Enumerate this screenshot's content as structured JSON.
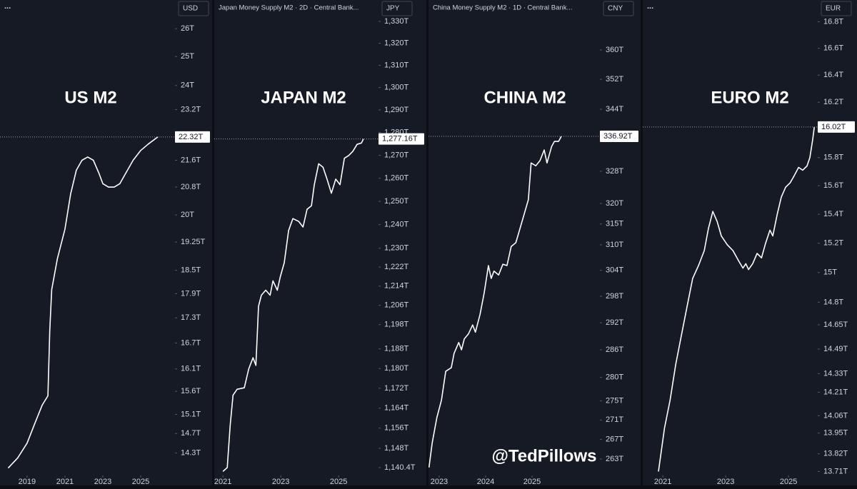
{
  "watermark": "@TedPillows",
  "chart_data": [
    {
      "type": "line",
      "title": "US M2",
      "menu": "...",
      "currency": "USD",
      "log_scale": true,
      "xlim": [
        2017.57,
        2026.81
      ],
      "xticks": [
        2019,
        2021,
        2023,
        2025
      ],
      "ylim": [
        13.87,
        26.4
      ],
      "yticks": [
        {
          "value": 26,
          "label": "26T"
        },
        {
          "value": 25,
          "label": "25T"
        },
        {
          "value": 24,
          "label": "24T"
        },
        {
          "value": 23.2,
          "label": "23.2T"
        },
        {
          "value": 21.6,
          "label": "21.6T"
        },
        {
          "value": 20.8,
          "label": "20.8T"
        },
        {
          "value": 20,
          "label": "20T"
        },
        {
          "value": 19.25,
          "label": "19.25T"
        },
        {
          "value": 18.5,
          "label": "18.5T"
        },
        {
          "value": 17.9,
          "label": "17.9T"
        },
        {
          "value": 17.3,
          "label": "17.3T"
        },
        {
          "value": 16.7,
          "label": "16.7T"
        },
        {
          "value": 16.1,
          "label": "16.1T"
        },
        {
          "value": 15.6,
          "label": "15.6T"
        },
        {
          "value": 15.1,
          "label": "15.1T"
        },
        {
          "value": 14.7,
          "label": "14.7T"
        },
        {
          "value": 14.3,
          "label": "14.3T"
        }
      ],
      "color": "#ffffff",
      "x": [
        2018.0,
        2018.5,
        2019.0,
        2019.4,
        2019.8,
        2020.1,
        2020.2,
        2020.3,
        2020.6,
        2021.0,
        2021.3,
        2021.6,
        2021.9,
        2022.2,
        2022.5,
        2022.8,
        2023.0,
        2023.3,
        2023.6,
        2023.9,
        2024.2,
        2024.6,
        2025.0,
        2025.4,
        2025.9
      ],
      "values": [
        14.0,
        14.2,
        14.5,
        14.9,
        15.3,
        15.5,
        17.0,
        18.0,
        18.8,
        19.6,
        20.6,
        21.3,
        21.6,
        21.7,
        21.6,
        21.2,
        20.9,
        20.8,
        20.8,
        20.9,
        21.2,
        21.6,
        21.9,
        22.1,
        22.32
      ],
      "last_label": "22.32T"
    },
    {
      "type": "line",
      "title": "JAPAN M2",
      "source": "Japan Money Supply M2 · 2D · Central Bank...",
      "currency": "JPY",
      "log_scale": true,
      "xlim": [
        2020.7,
        2026.38
      ],
      "xticks": [
        2021,
        2023,
        2025
      ],
      "ylim": [
        1137.6,
        1331.6
      ],
      "yticks": [
        {
          "value": 1330,
          "label": "1,330T"
        },
        {
          "value": 1320,
          "label": "1,320T"
        },
        {
          "value": 1310,
          "label": "1,310T"
        },
        {
          "value": 1300,
          "label": "1,300T"
        },
        {
          "value": 1290,
          "label": "1,290T"
        },
        {
          "value": 1280,
          "label": "1,280T"
        },
        {
          "value": 1270,
          "label": "1,270T"
        },
        {
          "value": 1260,
          "label": "1,260T"
        },
        {
          "value": 1250,
          "label": "1,250T"
        },
        {
          "value": 1240,
          "label": "1,240T"
        },
        {
          "value": 1230,
          "label": "1,230T"
        },
        {
          "value": 1222,
          "label": "1,222T"
        },
        {
          "value": 1214,
          "label": "1,214T"
        },
        {
          "value": 1206,
          "label": "1,206T"
        },
        {
          "value": 1198,
          "label": "1,198T"
        },
        {
          "value": 1188,
          "label": "1,188T"
        },
        {
          "value": 1180,
          "label": "1,180T"
        },
        {
          "value": 1172,
          "label": "1,172T"
        },
        {
          "value": 1164,
          "label": "1,164T"
        },
        {
          "value": 1156,
          "label": "1,156T"
        },
        {
          "value": 1148,
          "label": "1,148T"
        },
        {
          "value": 1140.4,
          "label": "1,140.4T"
        }
      ],
      "color": "#ffffff",
      "x": [
        2021.0,
        2021.15,
        2021.25,
        2021.35,
        2021.49,
        2021.74,
        2021.89,
        2022.04,
        2022.14,
        2022.23,
        2022.33,
        2022.48,
        2022.63,
        2022.73,
        2022.88,
        2022.98,
        2023.12,
        2023.27,
        2023.42,
        2023.62,
        2023.77,
        2023.91,
        2024.06,
        2024.16,
        2024.31,
        2024.46,
        2024.6,
        2024.75,
        2024.9,
        2025.05,
        2025.2,
        2025.35,
        2025.49,
        2025.64,
        2025.79,
        2025.86
      ],
      "values": [
        1138.9,
        1140.4,
        1157.1,
        1169.2,
        1171.6,
        1172.2,
        1179.8,
        1184.4,
        1181.3,
        1205.6,
        1210.2,
        1212.3,
        1210.2,
        1216.2,
        1212.3,
        1217.7,
        1223.8,
        1237.5,
        1242.6,
        1241.4,
        1239.0,
        1246.6,
        1248.1,
        1257.2,
        1266.3,
        1264.8,
        1259.6,
        1253.5,
        1259.6,
        1257.2,
        1268.7,
        1269.9,
        1271.7,
        1274.8,
        1275.4,
        1277.16
      ],
      "last_label": "1,277.16T"
    },
    {
      "type": "line",
      "title": "CHINA M2",
      "source": "China Money Supply M2 · 1D · Central Bank...",
      "currency": "CNY",
      "log_scale": true,
      "xlim": [
        2022.77,
        2026.46
      ],
      "xticks": [
        2023,
        2024,
        2025
      ],
      "ylim": [
        259.85,
        369.0
      ],
      "yticks": [
        {
          "value": 360,
          "label": "360T"
        },
        {
          "value": 352,
          "label": "352T"
        },
        {
          "value": 344,
          "label": "344T"
        },
        {
          "value": 328,
          "label": "328T"
        },
        {
          "value": 320,
          "label": "320T"
        },
        {
          "value": 315,
          "label": "315T"
        },
        {
          "value": 310,
          "label": "310T"
        },
        {
          "value": 304,
          "label": "304T"
        },
        {
          "value": 298,
          "label": "298T"
        },
        {
          "value": 292,
          "label": "292T"
        },
        {
          "value": 286,
          "label": "286T"
        },
        {
          "value": 280,
          "label": "280T"
        },
        {
          "value": 275,
          "label": "275T"
        },
        {
          "value": 271,
          "label": "271T"
        },
        {
          "value": 267,
          "label": "267T"
        },
        {
          "value": 263,
          "label": "263T"
        }
      ],
      "color": "#ffffff",
      "x": [
        2022.78,
        2022.85,
        2022.95,
        2023.05,
        2023.14,
        2023.26,
        2023.32,
        2023.42,
        2023.48,
        2023.54,
        2023.63,
        2023.72,
        2023.78,
        2023.88,
        2023.97,
        2024.06,
        2024.12,
        2024.18,
        2024.28,
        2024.37,
        2024.46,
        2024.55,
        2024.65,
        2024.74,
        2024.83,
        2024.92,
        2024.98,
        2025.08,
        2025.17,
        2025.26,
        2025.32,
        2025.42,
        2025.48,
        2025.57,
        2025.63
      ],
      "values": [
        261.3,
        266.3,
        271.5,
        275.2,
        281.3,
        282.1,
        285.2,
        287.6,
        286.0,
        288.4,
        289.5,
        291.5,
        289.9,
        293.9,
        298.8,
        305.1,
        302.1,
        303.8,
        302.9,
        305.4,
        305.1,
        309.6,
        310.5,
        313.9,
        317.4,
        320.9,
        330.1,
        329.4,
        330.7,
        333.4,
        330.1,
        334.3,
        335.6,
        335.6,
        336.92
      ],
      "last_label": "336.92T"
    },
    {
      "type": "line",
      "title": "EURO M2",
      "menu": "...",
      "currency": "EUR",
      "log_scale": true,
      "xlim": [
        2020.36,
        2025.93
      ],
      "xticks": [
        2021,
        2023,
        2025
      ],
      "ylim": [
        13.69,
        16.83
      ],
      "yticks": [
        {
          "value": 16.8,
          "label": "16.8T"
        },
        {
          "value": 16.6,
          "label": "16.6T"
        },
        {
          "value": 16.4,
          "label": "16.4T"
        },
        {
          "value": 16.2,
          "label": "16.2T"
        },
        {
          "value": 15.8,
          "label": "15.8T"
        },
        {
          "value": 15.6,
          "label": "15.6T"
        },
        {
          "value": 15.4,
          "label": "15.4T"
        },
        {
          "value": 15.2,
          "label": "15.2T"
        },
        {
          "value": 15,
          "label": "15T"
        },
        {
          "value": 14.8,
          "label": "14.8T"
        },
        {
          "value": 14.65,
          "label": "14.65T"
        },
        {
          "value": 14.49,
          "label": "14.49T"
        },
        {
          "value": 14.33,
          "label": "14.33T"
        },
        {
          "value": 14.21,
          "label": "14.21T"
        },
        {
          "value": 14.06,
          "label": "14.06T"
        },
        {
          "value": 13.95,
          "label": "13.95T"
        },
        {
          "value": 13.82,
          "label": "13.82T"
        },
        {
          "value": 13.71,
          "label": "13.71T"
        }
      ],
      "color": "#ffffff",
      "x": [
        2020.86,
        2021.05,
        2021.23,
        2021.41,
        2021.59,
        2021.77,
        2021.95,
        2022.14,
        2022.32,
        2022.45,
        2022.59,
        2022.73,
        2022.86,
        2023.05,
        2023.23,
        2023.41,
        2023.55,
        2023.64,
        2023.73,
        2023.86,
        2024.0,
        2024.14,
        2024.27,
        2024.41,
        2024.5,
        2024.64,
        2024.77,
        2024.91,
        2025.05,
        2025.18,
        2025.32,
        2025.45,
        2025.59,
        2025.68,
        2025.77,
        2025.82
      ],
      "values": [
        13.71,
        13.98,
        14.16,
        14.39,
        14.58,
        14.77,
        14.96,
        15.05,
        15.15,
        15.3,
        15.42,
        15.35,
        15.25,
        15.19,
        15.15,
        15.08,
        15.03,
        15.06,
        15.02,
        15.06,
        15.13,
        15.1,
        15.2,
        15.29,
        15.25,
        15.4,
        15.52,
        15.59,
        15.62,
        15.67,
        15.73,
        15.71,
        15.74,
        15.8,
        15.93,
        16.02
      ],
      "last_label": "16.02T"
    }
  ]
}
